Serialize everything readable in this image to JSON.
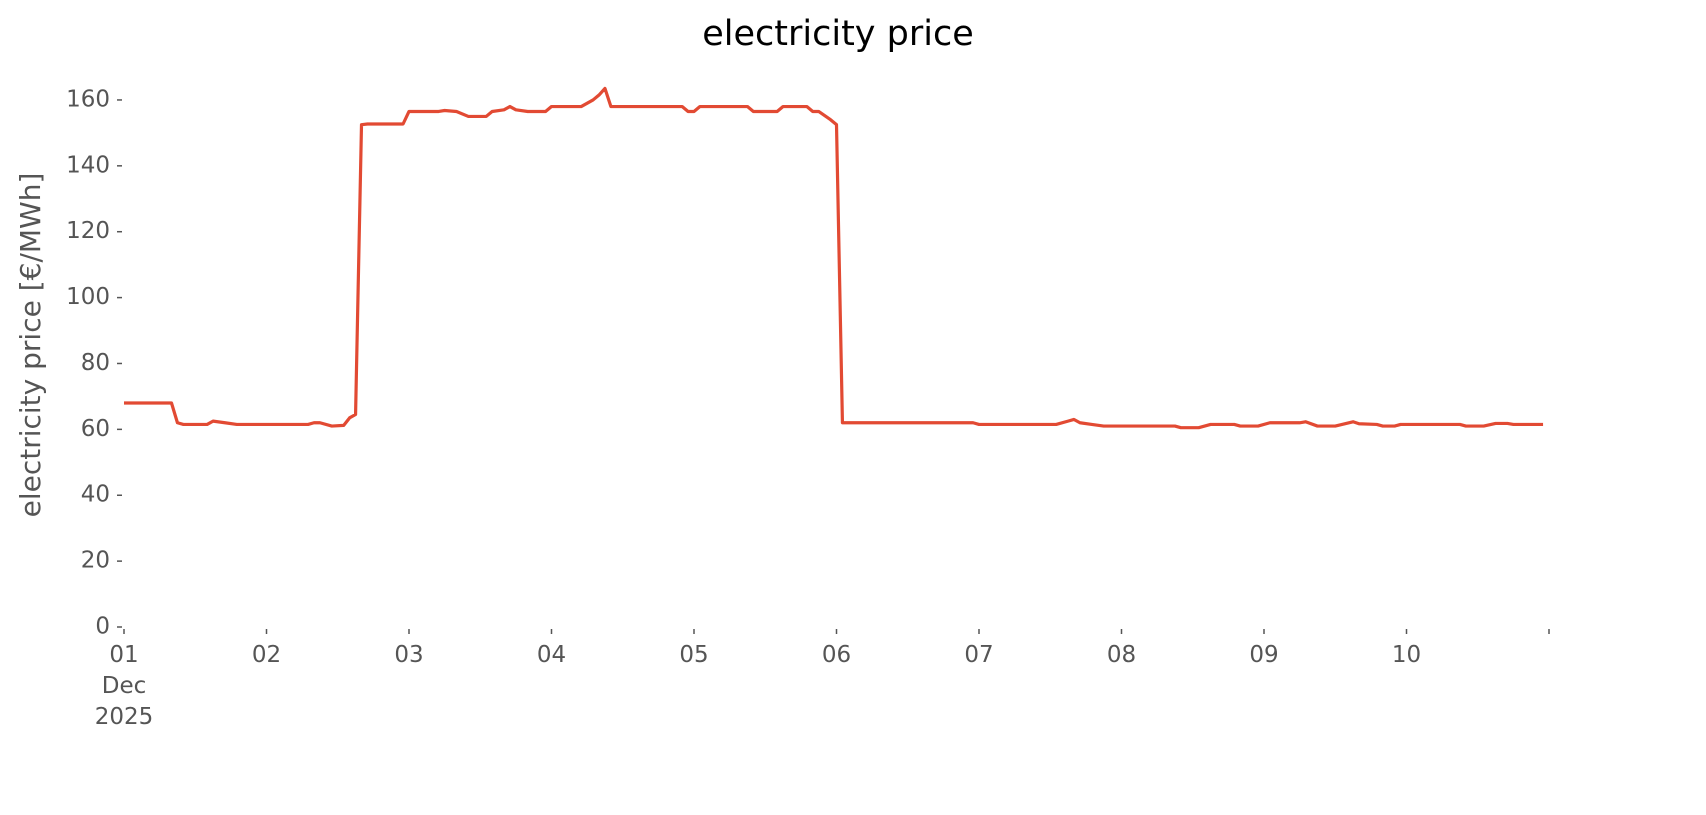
{
  "chart_data": {
    "type": "line",
    "title": "electricity price",
    "y_label": "electricity price [€/MWh]",
    "x": [
      "2025-12-01T00:00",
      "2025-12-01T08:00",
      "2025-12-01T09:00",
      "2025-12-01T10:00",
      "2025-12-01T14:00",
      "2025-12-01T15:00",
      "2025-12-01T17:00",
      "2025-12-01T19:00",
      "2025-12-02T07:00",
      "2025-12-02T08:00",
      "2025-12-02T09:00",
      "2025-12-02T11:00",
      "2025-12-02T13:00",
      "2025-12-02T14:00",
      "2025-12-02T15:00",
      "2025-12-02T16:00",
      "2025-12-02T17:00",
      "2025-12-02T23:00",
      "2025-12-03T00:00",
      "2025-12-03T05:00",
      "2025-12-03T06:00",
      "2025-12-03T08:00",
      "2025-12-03T10:00",
      "2025-12-03T13:00",
      "2025-12-03T14:00",
      "2025-12-03T16:00",
      "2025-12-03T17:00",
      "2025-12-03T18:00",
      "2025-12-03T20:00",
      "2025-12-03T23:00",
      "2025-12-04T00:00",
      "2025-12-04T05:00",
      "2025-12-04T07:00",
      "2025-12-04T08:00",
      "2025-12-04T09:00",
      "2025-12-04T10:00",
      "2025-12-04T22:00",
      "2025-12-04T23:00",
      "2025-12-05T00:00",
      "2025-12-05T01:00",
      "2025-12-05T09:00",
      "2025-12-05T10:00",
      "2025-12-05T14:00",
      "2025-12-05T15:00",
      "2025-12-05T19:00",
      "2025-12-05T20:00",
      "2025-12-05T21:00",
      "2025-12-05T23:00",
      "2025-12-06T00:00",
      "2025-12-06T01:00",
      "2025-12-06T23:00",
      "2025-12-07T00:00",
      "2025-12-07T13:00",
      "2025-12-07T15:00",
      "2025-12-07T16:00",
      "2025-12-07T17:00",
      "2025-12-07T19:00",
      "2025-12-07T21:00",
      "2025-12-08T09:00",
      "2025-12-08T10:00",
      "2025-12-08T13:00",
      "2025-12-08T15:00",
      "2025-12-08T19:00",
      "2025-12-08T20:00",
      "2025-12-08T23:00",
      "2025-12-09T01:00",
      "2025-12-09T06:00",
      "2025-12-09T07:00",
      "2025-12-09T09:00",
      "2025-12-09T12:00",
      "2025-12-09T15:00",
      "2025-12-09T16:00",
      "2025-12-09T19:00",
      "2025-12-09T20:00",
      "2025-12-09T22:00",
      "2025-12-09T23:00",
      "2025-12-10T09:00",
      "2025-12-10T10:00",
      "2025-12-10T13:00",
      "2025-12-10T15:00",
      "2025-12-10T17:00",
      "2025-12-10T18:00",
      "2025-12-10T23:00"
    ],
    "series": [
      {
        "name": "electricity price",
        "color": "#e24a33",
        "values": [
          68,
          68,
          62,
          61.5,
          61.5,
          62.5,
          62,
          61.5,
          61.5,
          62,
          62,
          61,
          61.2,
          63.5,
          64.5,
          152.5,
          152.7,
          152.7,
          156.5,
          156.5,
          156.8,
          156.5,
          155,
          155,
          156.5,
          157,
          158,
          157,
          156.5,
          156.5,
          158,
          158,
          160,
          161.5,
          163.5,
          158,
          158,
          156.5,
          156.5,
          158,
          158,
          156.5,
          156.5,
          158,
          158,
          156.5,
          156.5,
          154,
          152.5,
          62,
          62,
          61.5,
          61.5,
          62.5,
          63,
          62,
          61.5,
          61,
          61,
          60.5,
          60.5,
          61.5,
          61.5,
          61,
          61,
          62,
          62,
          62.3,
          61,
          61,
          62.3,
          61.7,
          61.5,
          61,
          61,
          61.5,
          61.5,
          61,
          61,
          61.8,
          61.8,
          61.5,
          61.5
        ]
      }
    ],
    "xlim": [
      "2025-12-01T00:00",
      "2025-12-11T00:00"
    ],
    "xticks": [
      {
        "value": "2025-12-01T00:00",
        "label": "01\nDec\n2025"
      },
      {
        "value": "2025-12-02T00:00",
        "label": "02"
      },
      {
        "value": "2025-12-03T00:00",
        "label": "03"
      },
      {
        "value": "2025-12-04T00:00",
        "label": "04"
      },
      {
        "value": "2025-12-05T00:00",
        "label": "05"
      },
      {
        "value": "2025-12-06T00:00",
        "label": "06"
      },
      {
        "value": "2025-12-07T00:00",
        "label": "07"
      },
      {
        "value": "2025-12-08T00:00",
        "label": "08"
      },
      {
        "value": "2025-12-09T00:00",
        "label": "09"
      },
      {
        "value": "2025-12-10T00:00",
        "label": "10"
      }
    ],
    "ylim": [
      0,
      168
    ],
    "yticks": [
      0,
      20,
      40,
      60,
      80,
      100,
      120,
      140,
      160
    ],
    "grid": false
  }
}
